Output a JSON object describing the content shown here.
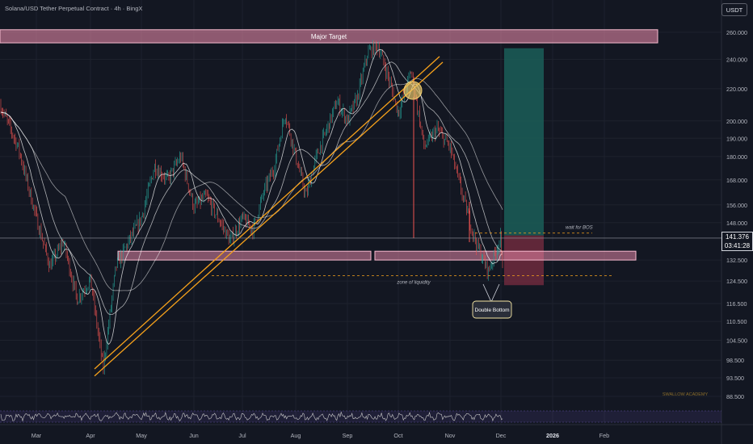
{
  "header": {
    "title": "Solana/USD Tether Perpetual Contract · 4h · BingX",
    "currency_button": "USDT"
  },
  "last_price": {
    "value": "141.376",
    "countdown": "03:41:28"
  },
  "annotations": {
    "major_target": "Major Target",
    "wait_for_bos": "wait for BOS",
    "zone_of_liquidity": "zone of liquidity",
    "double_bottom": "Double Bottom",
    "watermark": "SWALLOW ACADEMY"
  },
  "colors": {
    "background": "#131722",
    "zone_fill": "#f48fb1",
    "zone_border": "#f8bbd0",
    "trendline": "#f7a21b",
    "profit_zone": "#1b5e58",
    "loss_zone": "#6e2a3d",
    "ma_line": "#ffffff",
    "rsi_line": "#c9c9c9",
    "rsi_band": "#5b4a9b",
    "bull_candle": "#26a69a",
    "bear_candle": "#ef5350"
  },
  "chart_data": {
    "type": "candlestick",
    "symbol": "SOLUSDT",
    "interval": "4h",
    "y_scale": "log",
    "ylim": [
      84,
      268
    ],
    "y_ticks": [
      260,
      240,
      220,
      200,
      190,
      180,
      168,
      156,
      148,
      132.5,
      124.5,
      116.5,
      110.5,
      104.5,
      98.5,
      93.5,
      88.5
    ],
    "x_ticks": [
      "Mar",
      "Apr",
      "May",
      "Jun",
      "Jul",
      "Aug",
      "Sep",
      "Oct",
      "Nov",
      "Dec",
      "2026",
      "Feb"
    ],
    "price_path": [
      [
        "Feb",
        210
      ],
      [
        "Feb",
        185
      ],
      [
        "Mar",
        150
      ],
      [
        "Mar",
        130
      ],
      [
        "Mar",
        140
      ],
      [
        "Mar",
        118
      ],
      [
        "Apr",
        125
      ],
      [
        "Apr",
        96
      ],
      [
        "Apr",
        130
      ],
      [
        "Apr",
        140
      ],
      [
        "May",
        150
      ],
      [
        "May",
        175
      ],
      [
        "May",
        168
      ],
      [
        "May",
        180
      ],
      [
        "Jun",
        155
      ],
      [
        "Jun",
        160
      ],
      [
        "Jun",
        150
      ],
      [
        "Jun",
        140
      ],
      [
        "Jul",
        150
      ],
      [
        "Jul",
        145
      ],
      [
        "Jul",
        162
      ],
      [
        "Jul",
        175
      ],
      [
        "Jul",
        205
      ],
      [
        "Aug",
        180
      ],
      [
        "Aug",
        160
      ],
      [
        "Aug",
        180
      ],
      [
        "Aug",
        195
      ],
      [
        "Aug",
        212
      ],
      [
        "Sep",
        200
      ],
      [
        "Sep",
        215
      ],
      [
        "Sep",
        245
      ],
      [
        "Sep",
        250
      ],
      [
        "Sep",
        228
      ],
      [
        "Oct",
        205
      ],
      [
        "Oct",
        232
      ],
      [
        "Oct",
        185
      ],
      [
        "Oct",
        195
      ],
      [
        "Nov",
        185
      ],
      [
        "Nov",
        160
      ],
      [
        "Nov",
        140
      ],
      [
        "Nov",
        128
      ],
      [
        "Dec",
        142
      ],
      [
        "Dec",
        125
      ],
      [
        "Dec",
        141.376
      ]
    ],
    "zones": [
      {
        "label": "Major Target",
        "from_date": "Feb",
        "to_date": "Jan 2026",
        "low": 252,
        "high": 262
      },
      {
        "label": "",
        "from_date": "Apr",
        "to_date": "Oct",
        "low": 132.5,
        "high": 136
      },
      {
        "label": "",
        "from_date": "Oct",
        "to_date": "Jan 2026",
        "low": 132.5,
        "high": 136
      }
    ],
    "levels": [
      {
        "label": "wait for BOS",
        "price": 143.5
      },
      {
        "label": "zone of liquidity",
        "price": 126.5
      },
      {
        "label": "",
        "price": 141.376
      }
    ],
    "trendlines": [
      {
        "from": [
          "Apr",
          96
        ],
        "to": [
          "Oct",
          242
        ]
      },
      {
        "from": [
          "Apr",
          94
        ],
        "to": [
          "Oct",
          238
        ]
      }
    ],
    "position": {
      "entry": 142.5,
      "target": 248,
      "stop": 123
    },
    "indicators": [
      "moving average",
      "moving average",
      "RSI"
    ]
  }
}
